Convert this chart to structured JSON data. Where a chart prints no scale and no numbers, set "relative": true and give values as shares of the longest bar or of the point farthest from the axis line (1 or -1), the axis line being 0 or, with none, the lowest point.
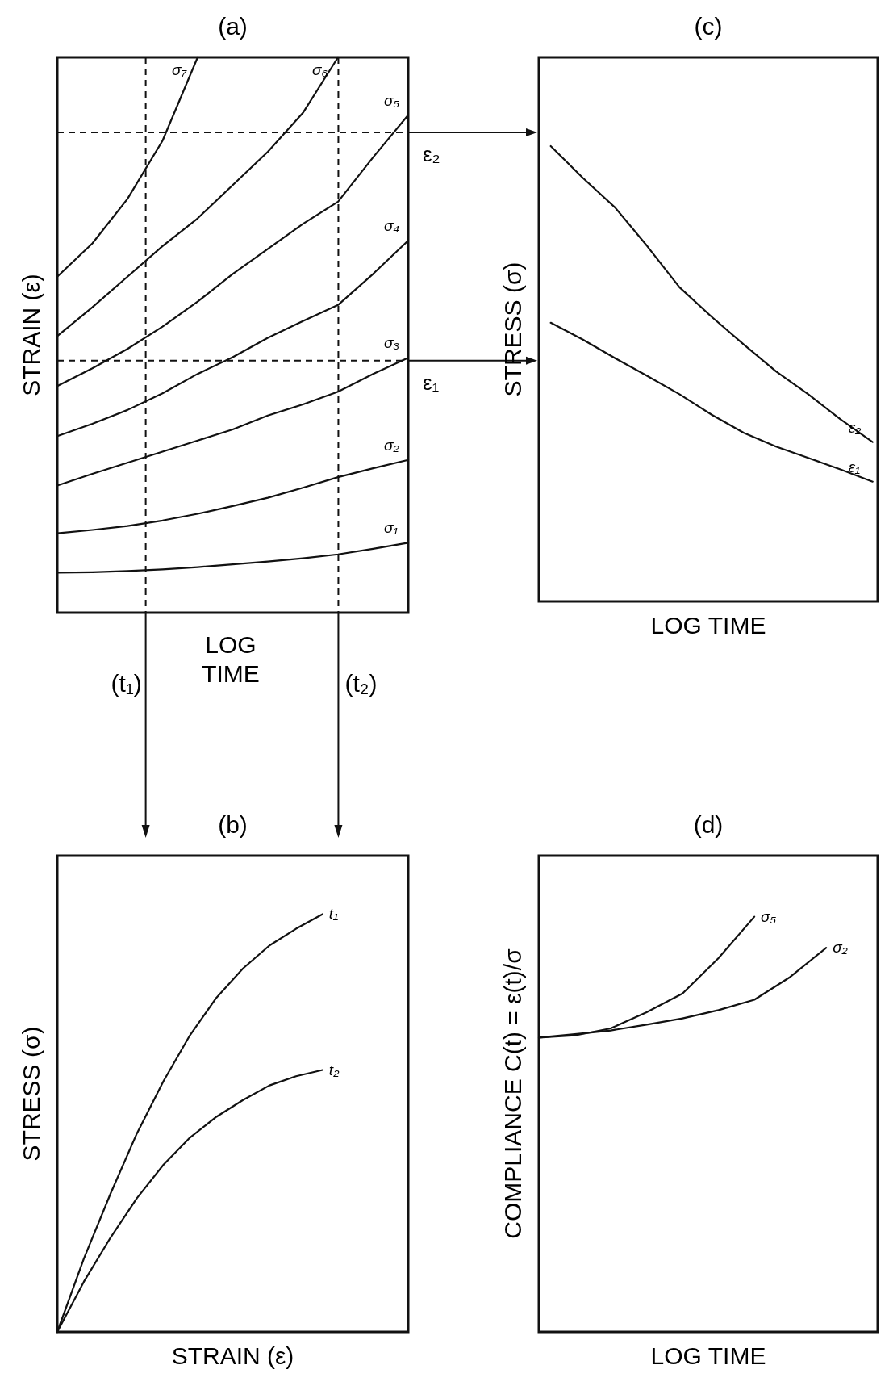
{
  "chart_data": [
    {
      "type": "line",
      "title": "(a)",
      "xlabel": "LOG TIME",
      "ylabel": "STRAIN (ε)",
      "relative": true,
      "categories": [
        null,
        null,
        null,
        null,
        null,
        null,
        null,
        null,
        null,
        null,
        null
      ],
      "annotations": [
        "(t₁)",
        "(t₂)"
      ],
      "series": [
        {
          "name": "σ₁",
          "color": "#111111",
          "values": [
            0.072,
            0.073,
            0.075,
            0.078,
            0.082,
            0.087,
            0.092,
            0.098,
            0.105,
            0.115,
            0.126
          ]
        },
        {
          "name": "σ₂",
          "color": "#111111",
          "values": [
            0.143,
            0.149,
            0.156,
            0.166,
            0.178,
            0.192,
            0.207,
            0.225,
            0.244,
            0.26,
            0.275
          ]
        },
        {
          "name": "σ₃",
          "color": "#111111",
          "values": [
            0.229,
            0.25,
            0.27,
            0.29,
            0.31,
            0.33,
            0.355,
            0.375,
            0.398,
            0.43,
            0.459
          ]
        },
        {
          "name": "σ₄",
          "color": "#111111",
          "values": [
            0.318,
            0.34,
            0.365,
            0.395,
            0.43,
            0.46,
            0.495,
            0.525,
            0.554,
            0.61,
            0.67
          ]
        },
        {
          "name": "σ₅",
          "color": "#111111",
          "values": [
            0.408,
            0.44,
            0.475,
            0.515,
            0.56,
            0.61,
            0.655,
            0.7,
            0.74,
            0.82,
            0.896
          ]
        },
        {
          "name": "σ₆",
          "color": "#111111",
          "values": [
            0.498,
            0.55,
            0.605,
            0.66,
            0.71,
            0.77,
            0.83,
            0.9,
            1,
            null,
            null
          ]
        },
        {
          "name": "σ₇",
          "color": "#111111",
          "values": [
            0.605,
            0.665,
            0.745,
            0.85,
            1,
            null,
            null,
            null,
            null,
            null,
            null
          ]
        }
      ],
      "ref_lines": [
        {
          "axis": "y",
          "value": 0.865,
          "label": "ε₂",
          "line_style": "dashed"
        },
        {
          "axis": "y",
          "value": 0.454,
          "label": "ε₁",
          "line_style": "dashed"
        }
      ]
    },
    {
      "type": "line",
      "title": "(c)",
      "xlabel": "LOG TIME",
      "ylabel": "STRESS (σ)",
      "relative": true,
      "categories": [
        null,
        null,
        null,
        null,
        null,
        null,
        null,
        null,
        null,
        null,
        null
      ],
      "series": [
        {
          "name": "ε₂",
          "color": "#111111",
          "values": [
            1,
            0.93,
            0.865,
            0.78,
            0.69,
            0.625,
            0.564,
            0.505,
            0.455,
            0.4,
            0.35
          ]
        },
        {
          "name": "ε₁",
          "color": "#111111",
          "values": [
            0.612,
            0.575,
            0.534,
            0.495,
            0.455,
            0.41,
            0.37,
            0.34,
            0.315,
            0.29,
            0.263
          ]
        }
      ]
    },
    {
      "type": "line",
      "title": "(b)",
      "xlabel": "STRAIN (ε)",
      "ylabel": "STRESS (σ)",
      "relative": true,
      "categories": [
        null,
        null,
        null,
        null,
        null,
        null,
        null,
        null,
        null,
        null,
        null
      ],
      "series": [
        {
          "name": "t₁",
          "color": "#111111",
          "values": [
            0,
            0.175,
            0.33,
            0.475,
            0.6,
            0.71,
            0.8,
            0.87,
            0.925,
            0.965,
            1
          ]
        },
        {
          "name": "t₂",
          "color": "#111111",
          "values": [
            0,
            0.12,
            0.225,
            0.32,
            0.4,
            0.465,
            0.515,
            0.555,
            0.59,
            0.612,
            0.627
          ]
        }
      ]
    },
    {
      "type": "line",
      "title": "(d)",
      "xlabel": "LOG TIME",
      "ylabel": "COMPLIANCE C(t) = ε(t)/σ",
      "relative": true,
      "categories": [
        null,
        null,
        null,
        null,
        null,
        null,
        null,
        null,
        null
      ],
      "series": [
        {
          "name": "σ₅",
          "color": "#111111",
          "values": [
            0.709,
            0.714,
            0.731,
            0.77,
            0.815,
            0.9,
            1,
            null,
            null
          ]
        },
        {
          "name": "σ₂",
          "color": "#111111",
          "values": [
            0.709,
            0.717,
            0.726,
            0.74,
            0.755,
            0.775,
            0.8,
            0.855,
            0.925
          ]
        }
      ]
    }
  ]
}
